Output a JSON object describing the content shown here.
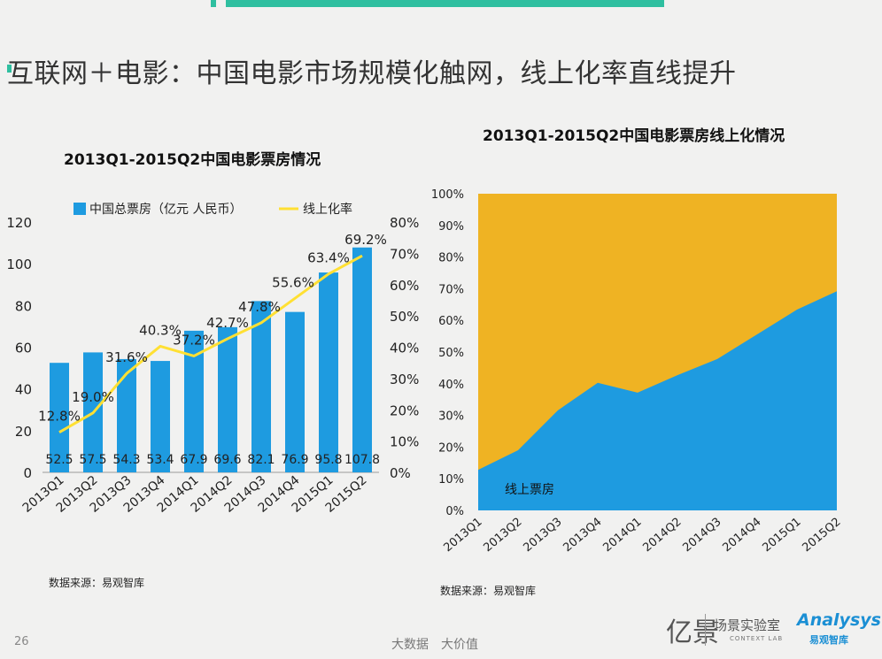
{
  "page": {
    "title": "互联网＋电影：中国电影市场规模化触网，线上化率直线提升",
    "page_number": "26",
    "footer_text": "大数据　大价值",
    "logo_mark": "亿景",
    "logo_lab": "场景实验室",
    "logo_lab_sub": "CONTEXT LAB",
    "logo_brand": "Analysys",
    "logo_brand_sub": "易观智库",
    "accent_color": "#2fbfa0"
  },
  "chart_data": [
    {
      "type": "bar",
      "title": "2013Q1-2015Q2中国电影票房情况",
      "source": "数据来源：易观智库",
      "categories": [
        "2013Q1",
        "2013Q2",
        "2013Q3",
        "2013Q4",
        "2014Q1",
        "2014Q2",
        "2014Q3",
        "2014Q4",
        "2015Q1",
        "2015Q2"
      ],
      "series": [
        {
          "name": "中国总票房（亿元 人民币）",
          "kind": "bar",
          "axis": "left",
          "color": "#1e9be0",
          "values": [
            52.5,
            57.5,
            54.3,
            53.4,
            67.9,
            69.6,
            82.1,
            76.9,
            95.8,
            107.8
          ],
          "labels": [
            "52.5",
            "57.5",
            "54.3",
            "53.4",
            "67.9",
            "69.6",
            "82.1",
            "76.9",
            "95.8",
            "107.8"
          ]
        },
        {
          "name": "线上化率",
          "kind": "line",
          "axis": "right",
          "color": "#ffe033",
          "values": [
            12.8,
            19.0,
            31.6,
            40.3,
            37.2,
            42.7,
            47.8,
            55.6,
            63.4,
            69.2
          ],
          "labels": [
            "12.8%",
            "19.0%",
            "31.6%",
            "40.3%",
            "37.2%",
            "42.7%",
            "47.8%",
            "55.6%",
            "63.4%",
            "69.2%"
          ]
        }
      ],
      "ylim_left": [
        0,
        120
      ],
      "yticks_left": [
        "0",
        "20",
        "40",
        "60",
        "80",
        "100",
        "120"
      ],
      "ylim_right": [
        0,
        80
      ],
      "yticks_right": [
        "0%",
        "10%",
        "20%",
        "30%",
        "40%",
        "50%",
        "60%",
        "70%",
        "80%"
      ],
      "legend_position": "top"
    },
    {
      "type": "area",
      "title": "2013Q1-2015Q2中国电影票房线上化情况",
      "source": "数据来源：易观智库",
      "categories": [
        "2013Q1",
        "2013Q2",
        "2013Q3",
        "2013Q4",
        "2014Q1",
        "2014Q2",
        "2014Q3",
        "2014Q4",
        "2015Q1",
        "2015Q2"
      ],
      "series": [
        {
          "name": "线上票房",
          "color": "#1e9be0",
          "values": [
            12.8,
            19.0,
            31.6,
            40.3,
            37.2,
            42.7,
            47.8,
            55.6,
            63.4,
            69.2
          ]
        },
        {
          "color": "#efb323",
          "values": [
            87.2,
            81.0,
            68.4,
            59.7,
            62.8,
            57.3,
            52.2,
            44.4,
            36.6,
            30.8
          ]
        }
      ],
      "ylim": [
        0,
        100
      ],
      "yticks": [
        "0%",
        "10%",
        "20%",
        "30%",
        "40%",
        "50%",
        "60%",
        "70%",
        "80%",
        "90%",
        "100%"
      ],
      "stacked": true,
      "in_chart_label": "线上票房"
    }
  ]
}
